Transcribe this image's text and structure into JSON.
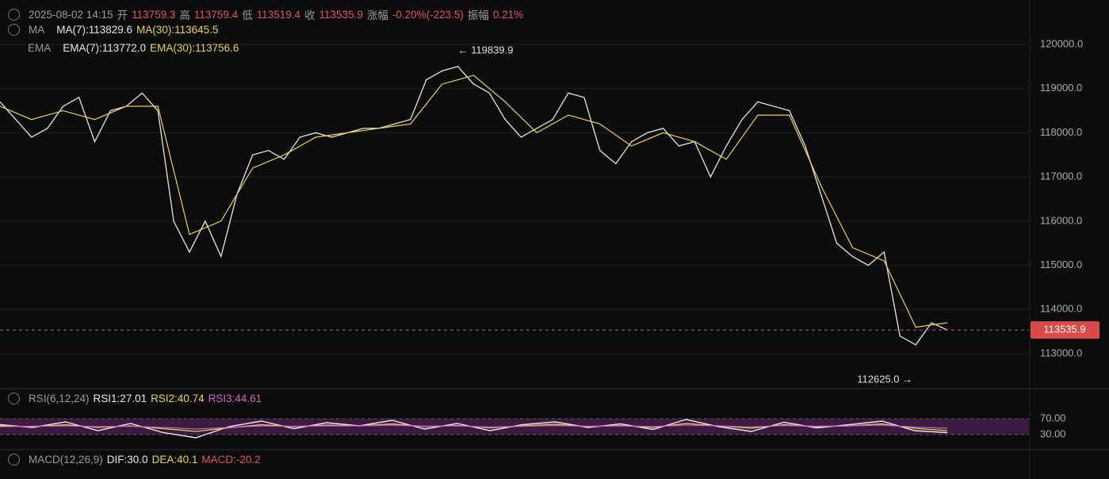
{
  "header": {
    "time": "2025-08-02 14:15",
    "open_label": "开",
    "open": "113759.3",
    "high_label": "高",
    "high": "113759.4",
    "low_label": "低",
    "low": "113519.4",
    "close_label": "收",
    "close": "113535.9",
    "change_label": "涨幅",
    "change": "-0.20%(-223.5)",
    "amplitude_label": "振幅",
    "amplitude": "0.21%"
  },
  "indicators": {
    "ma_title": "MA",
    "ma7": "MA(7):113829.6",
    "ma30": "MA(30):113645.5",
    "ema_title": "EMA",
    "ema7": "EMA(7):113772.0",
    "ema30": "EMA(30):113756.6",
    "rsi_title": "RSI(6,12,24)",
    "rsi1": "RSI1:27.01",
    "rsi2": "RSI2:40.74",
    "rsi3": "RSI3:44.61",
    "macd_title": "MACD(12,26,9)",
    "dif": "DIF:30.0",
    "dea": "DEA:40.1",
    "macd": "MACD:-20.2"
  },
  "chart_data": [
    {
      "type": "line",
      "ylim": [
        112210,
        121005
      ],
      "yticks": [
        {
          "value": 113000,
          "label": "113000.0"
        },
        {
          "value": 114000,
          "label": "114000.0"
        },
        {
          "value": 115000,
          "label": "115000.0"
        },
        {
          "value": 116000,
          "label": "116000.0"
        },
        {
          "value": 117000,
          "label": "117000.0"
        },
        {
          "value": 118000,
          "label": "118000.0"
        },
        {
          "value": 119000,
          "label": "119000.0"
        },
        {
          "value": 120000,
          "label": "120000.0"
        }
      ],
      "grid": true,
      "series": [
        {
          "color": "#d8d8d8",
          "values": [
            118700,
            118300,
            117900,
            118100,
            118600,
            118800,
            117800,
            118500,
            118600,
            118900,
            118500,
            116000,
            115300,
            116000,
            115200,
            116600,
            117500,
            117600,
            117400,
            117900,
            118000,
            117900,
            118000,
            118100,
            118100,
            118200,
            118300,
            119200,
            119400,
            119500,
            119100,
            118900,
            118300,
            117900,
            118100,
            118300,
            118900,
            118800,
            117600,
            117300,
            117800,
            118000,
            118100,
            117700,
            117800,
            117000,
            117700,
            118300,
            118700,
            118600,
            118500,
            117700,
            116600,
            115500,
            115200,
            115000,
            115300,
            113400,
            113200,
            113700,
            113535.9
          ]
        },
        {
          "color": "#e8d44d",
          "values": [
            118600,
            118300,
            118500,
            118300,
            118600,
            118600,
            115700,
            116000,
            117200,
            117500,
            117900,
            118000,
            118100,
            118200,
            119100,
            119300,
            118700,
            118000,
            118400,
            118200,
            117700,
            118000,
            117800,
            117400,
            118400,
            118400,
            116800,
            115400,
            115100,
            113600,
            113700
          ]
        }
      ],
      "current_price": 113535.9,
      "extremes": [
        {
          "index": 29,
          "value": 119839.9,
          "label": "← 119839.9"
        },
        {
          "index": 58,
          "value": 112625.0,
          "label": "112625.0 →"
        }
      ]
    },
    {
      "type": "line",
      "ylim": [
        -4,
        90
      ],
      "yticks": [
        {
          "value": 70,
          "label": "70.00"
        },
        {
          "value": 30,
          "label": "30.00"
        }
      ],
      "band": [
        30,
        70
      ],
      "series": [
        {
          "color": "#e8e8e8",
          "values": [
            55,
            48,
            62,
            40,
            58,
            35,
            22,
            50,
            64,
            45,
            60,
            52,
            66,
            44,
            58,
            40,
            55,
            62,
            48,
            57,
            43,
            68,
            50,
            38,
            61,
            47,
            55,
            64,
            40,
            35
          ]
        },
        {
          "color": "#e8d44d",
          "values": [
            52,
            50,
            55,
            48,
            52,
            45,
            38,
            47,
            55,
            50,
            54,
            52,
            57,
            50,
            53,
            47,
            52,
            56,
            50,
            53,
            48,
            58,
            52,
            46,
            55,
            50,
            52,
            57,
            46,
            40
          ]
        },
        {
          "color": "#d45fc8",
          "values": [
            50,
            51,
            52,
            50,
            51,
            48,
            44,
            48,
            52,
            51,
            52,
            52,
            54,
            51,
            52,
            49,
            51,
            53,
            51,
            52,
            50,
            54,
            52,
            49,
            53,
            51,
            52,
            54,
            49,
            46
          ]
        }
      ]
    }
  ]
}
